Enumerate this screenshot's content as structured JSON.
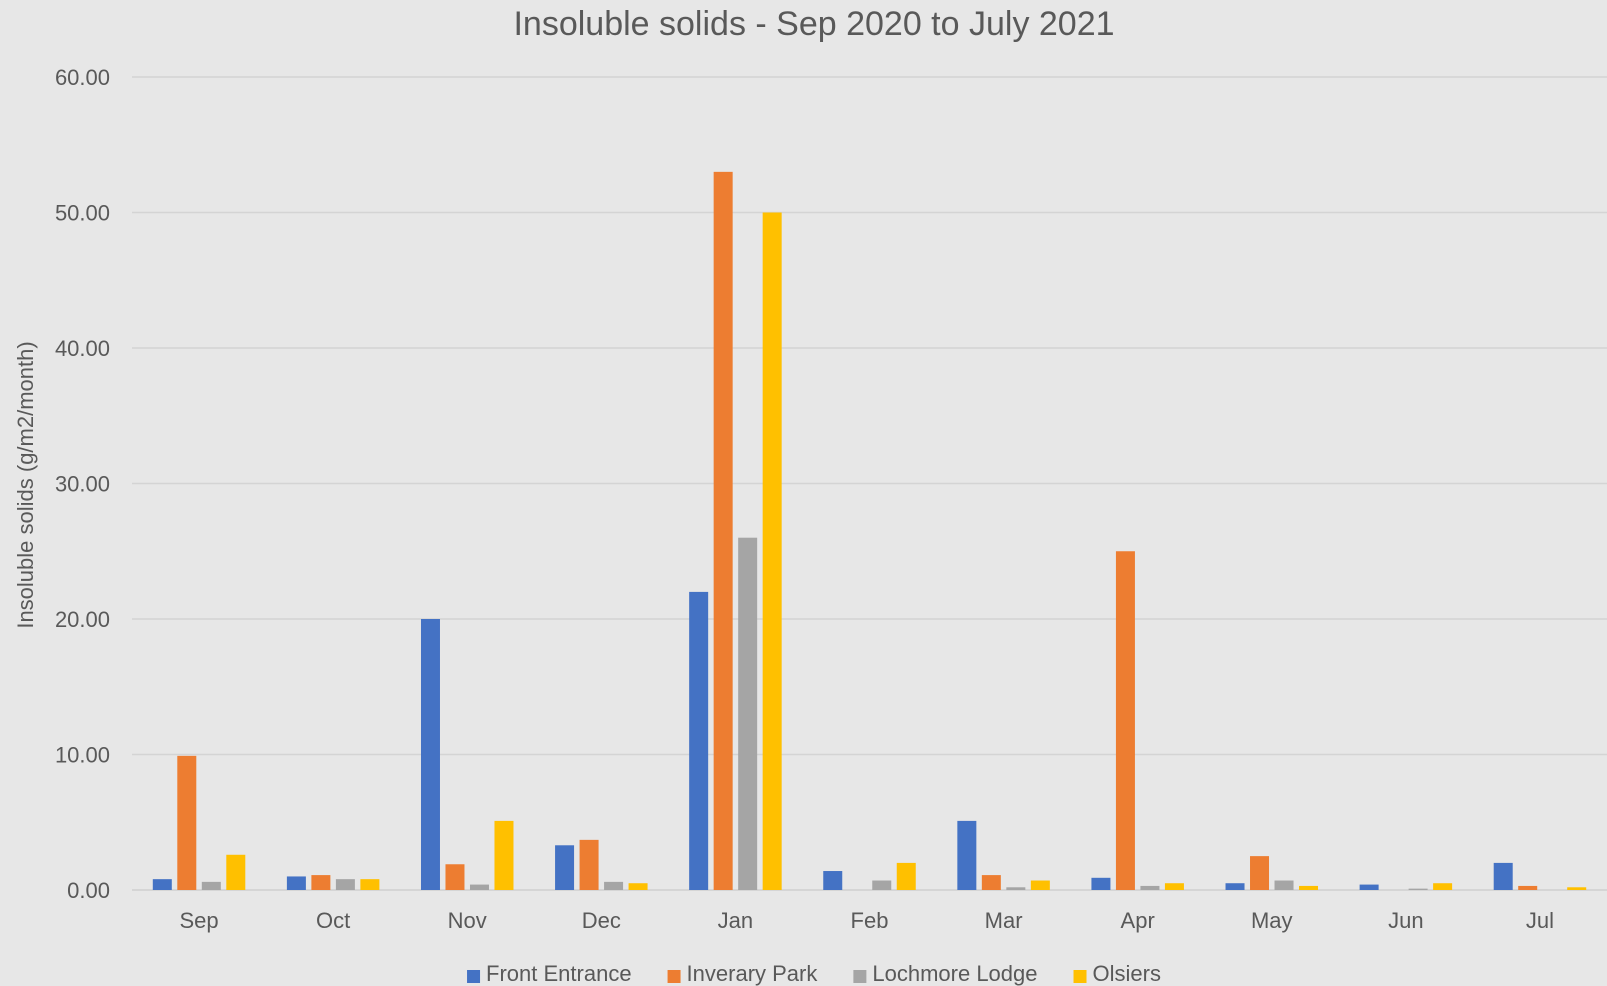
{
  "chart_data": {
    "type": "bar",
    "title": "Insoluble solids - Sep 2020 to July 2021",
    "xlabel": "",
    "ylabel": "Insoluble solids (g/m2/month)",
    "ylim": [
      0,
      60
    ],
    "yticks": [
      "0.00",
      "10.00",
      "20.00",
      "30.00",
      "40.00",
      "50.00",
      "60.00"
    ],
    "grid": true,
    "legend_position": "bottom",
    "categories": [
      "Sep",
      "Oct",
      "Nov",
      "Dec",
      "Jan",
      "Feb",
      "Mar",
      "Apr",
      "May",
      "Jun",
      "Jul"
    ],
    "series": [
      {
        "name": "Front Entrance",
        "color": "#4472c4",
        "values": [
          0.8,
          1.0,
          20.0,
          3.3,
          22.0,
          1.4,
          5.1,
          0.9,
          0.5,
          0.4,
          2.0
        ]
      },
      {
        "name": "Inverary Park",
        "color": "#ed7d31",
        "values": [
          9.9,
          1.1,
          1.9,
          3.7,
          53.0,
          0.0,
          1.1,
          25.0,
          2.5,
          0.0,
          0.3
        ]
      },
      {
        "name": "Lochmore Lodge",
        "color": "#a5a5a5",
        "values": [
          0.6,
          0.8,
          0.4,
          0.6,
          26.0,
          0.7,
          0.2,
          0.3,
          0.7,
          0.1,
          0.0
        ]
      },
      {
        "name": "Olsiers",
        "color": "#ffc000",
        "values": [
          2.6,
          0.8,
          5.1,
          0.5,
          50.0,
          2.0,
          0.7,
          0.5,
          0.3,
          0.5,
          0.2
        ]
      }
    ]
  }
}
